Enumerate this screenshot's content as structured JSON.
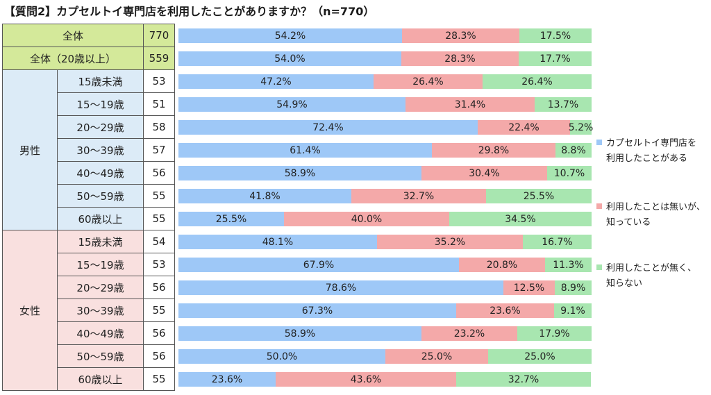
{
  "chart_data": {
    "type": "bar",
    "stacked": true,
    "orientation": "horizontal",
    "title": "【質問2】カプセルトイ専門店を利用したことがありますか？（n=770）",
    "groups": [
      {
        "label": "全体",
        "rows": [
          0
        ]
      },
      {
        "label": "全体（20歳以上）",
        "rows": [
          1
        ]
      },
      {
        "label": "男性",
        "rows": [
          2,
          3,
          4,
          5,
          6,
          7,
          8
        ]
      },
      {
        "label": "女性",
        "rows": [
          9,
          10,
          11,
          12,
          13,
          14,
          15
        ]
      }
    ],
    "rows": [
      {
        "label": "全体",
        "n": "770",
        "values": [
          54.2,
          28.3,
          17.5
        ],
        "labels": [
          "54.2%",
          "28.3%",
          "17.5%"
        ]
      },
      {
        "label": "全体（20歳以上）",
        "n": "559",
        "values": [
          54.0,
          28.3,
          17.7
        ],
        "labels": [
          "54.0%",
          "28.3%",
          "17.7%"
        ]
      },
      {
        "label": "15歳未満",
        "n": "53",
        "values": [
          47.2,
          26.4,
          26.4
        ],
        "labels": [
          "47.2%",
          "26.4%",
          "26.4%"
        ]
      },
      {
        "label": "15～19歳",
        "n": "51",
        "values": [
          54.9,
          31.4,
          13.7
        ],
        "labels": [
          "54.9%",
          "31.4%",
          "13.7%"
        ]
      },
      {
        "label": "20～29歳",
        "n": "58",
        "values": [
          72.4,
          22.4,
          5.2
        ],
        "labels": [
          "72.4%",
          "22.4%",
          "5.2%"
        ]
      },
      {
        "label": "30～39歳",
        "n": "57",
        "values": [
          61.4,
          29.8,
          8.8
        ],
        "labels": [
          "61.4%",
          "29.8%",
          "8.8%"
        ]
      },
      {
        "label": "40～49歳",
        "n": "56",
        "values": [
          58.9,
          30.4,
          10.7
        ],
        "labels": [
          "58.9%",
          "30.4%",
          "10.7%"
        ]
      },
      {
        "label": "50～59歳",
        "n": "55",
        "values": [
          41.8,
          32.7,
          25.5
        ],
        "labels": [
          "41.8%",
          "32.7%",
          "25.5%"
        ]
      },
      {
        "label": "60歳以上",
        "n": "55",
        "values": [
          25.5,
          40.0,
          34.5
        ],
        "labels": [
          "25.5%",
          "40.0%",
          "34.5%"
        ]
      },
      {
        "label": "15歳未満",
        "n": "54",
        "values": [
          48.1,
          35.2,
          16.7
        ],
        "labels": [
          "48.1%",
          "35.2%",
          "16.7%"
        ]
      },
      {
        "label": "15～19歳",
        "n": "53",
        "values": [
          67.9,
          20.8,
          11.3
        ],
        "labels": [
          "67.9%",
          "20.8%",
          "11.3%"
        ]
      },
      {
        "label": "20～29歳",
        "n": "56",
        "values": [
          78.6,
          12.5,
          8.9
        ],
        "labels": [
          "78.6%",
          "12.5%",
          "8.9%"
        ]
      },
      {
        "label": "30～39歳",
        "n": "55",
        "values": [
          67.3,
          23.6,
          9.1
        ],
        "labels": [
          "67.3%",
          "23.6%",
          "9.1%"
        ]
      },
      {
        "label": "40～49歳",
        "n": "56",
        "values": [
          58.9,
          23.2,
          17.9
        ],
        "labels": [
          "58.9%",
          "23.2%",
          "17.9%"
        ]
      },
      {
        "label": "50～59歳",
        "n": "56",
        "values": [
          50.0,
          25.0,
          25.0
        ],
        "labels": [
          "50.0%",
          "25.0%",
          "25.0%"
        ]
      },
      {
        "label": "60歳以上",
        "n": "55",
        "values": [
          23.6,
          43.6,
          32.7
        ],
        "labels": [
          "23.6%",
          "43.6%",
          "32.7%"
        ]
      }
    ],
    "series": [
      {
        "name": "カプセルトイ専門店を利用したことがある",
        "lines": [
          "カプセルトイ専門店を",
          "利用したことがある"
        ],
        "color": "#9ec8f7"
      },
      {
        "name": "利用したことは無いが、知っている",
        "lines": [
          "利用したことは無いが、",
          "知っている"
        ],
        "color": "#f4a9a9"
      },
      {
        "name": "利用したことが無く、知らない",
        "lines": [
          "利用したことが無く、",
          "知らない"
        ],
        "color": "#a8e6b0"
      }
    ],
    "xlim": [
      0,
      100
    ],
    "legend_position": "right"
  },
  "colors": {
    "total_cell": "#d4e99a",
    "male_cell": "#dcebf7",
    "female_cell": "#f9e0df"
  }
}
